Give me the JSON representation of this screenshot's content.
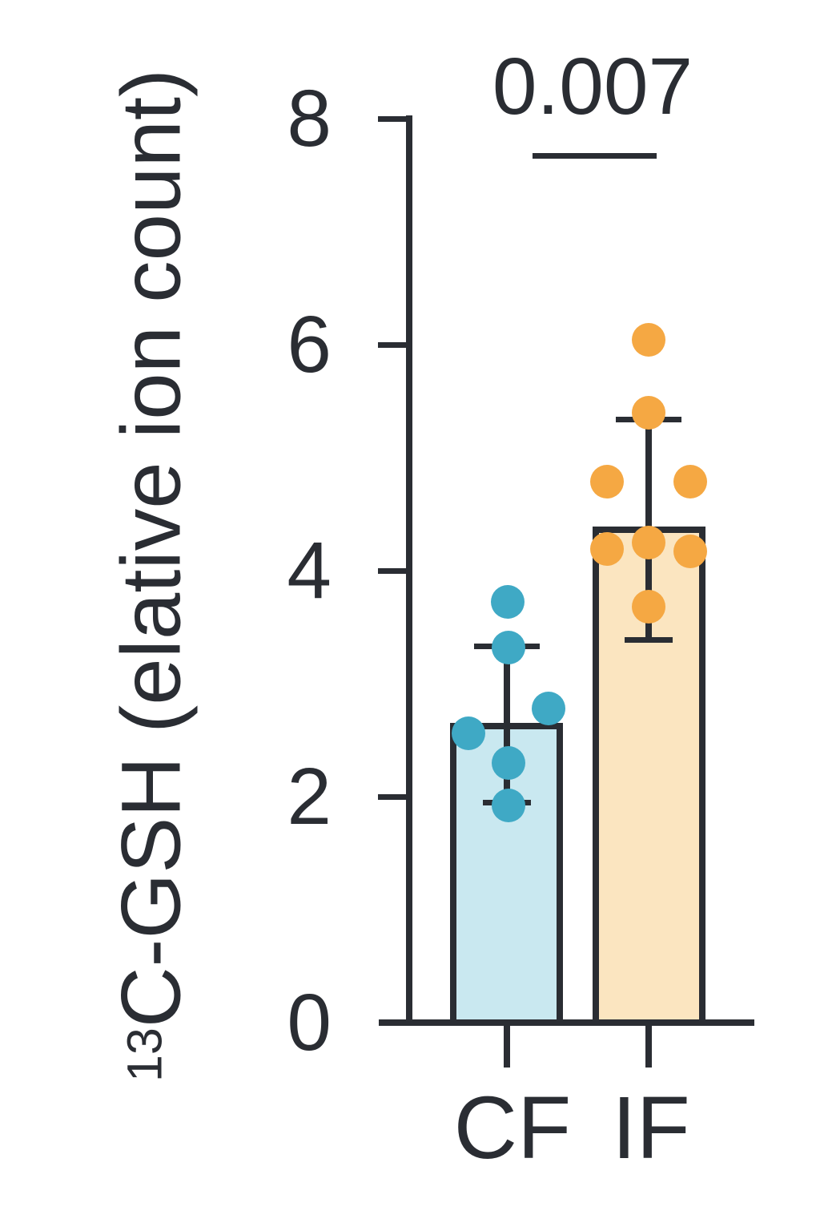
{
  "figure": {
    "p_value": "0.007",
    "ylabel_superscript": "13",
    "ylabel_text": "C-GSH (elative ion count)"
  },
  "chart_data": {
    "type": "bar",
    "title": "",
    "ylabel": "13C-GSH (elative ion count)",
    "xlabel": "",
    "categories": [
      "CF",
      "IF"
    ],
    "ylim": [
      0,
      8
    ],
    "y_ticks": [
      0,
      2,
      4,
      6,
      8
    ],
    "grid": false,
    "legend": "none",
    "axis_color": "#2a2d33",
    "significance": {
      "groups": [
        "CF",
        "IF"
      ],
      "p_value": "0.007"
    },
    "series": [
      {
        "name": "CF",
        "mean": 2.65,
        "error_low": 1.95,
        "error_high": 3.33,
        "points": [
          3.72,
          3.32,
          2.78,
          2.56,
          2.3,
          1.92
        ],
        "point_dx": [
          1,
          2,
          52,
          -48,
          2,
          2
        ],
        "bar_fill": "#c9e8f0",
        "point_color": "#3fa9c5"
      },
      {
        "name": "IF",
        "mean": 4.39,
        "error_low": 3.39,
        "error_high": 5.34,
        "points": [
          6.04,
          5.4,
          4.79,
          4.79,
          4.25,
          4.19,
          4.17,
          3.68
        ],
        "point_dx": [
          0,
          0,
          -52,
          52,
          0,
          -52,
          52,
          0
        ],
        "bar_fill": "#fbe5c0",
        "point_color": "#f5a843"
      }
    ]
  }
}
